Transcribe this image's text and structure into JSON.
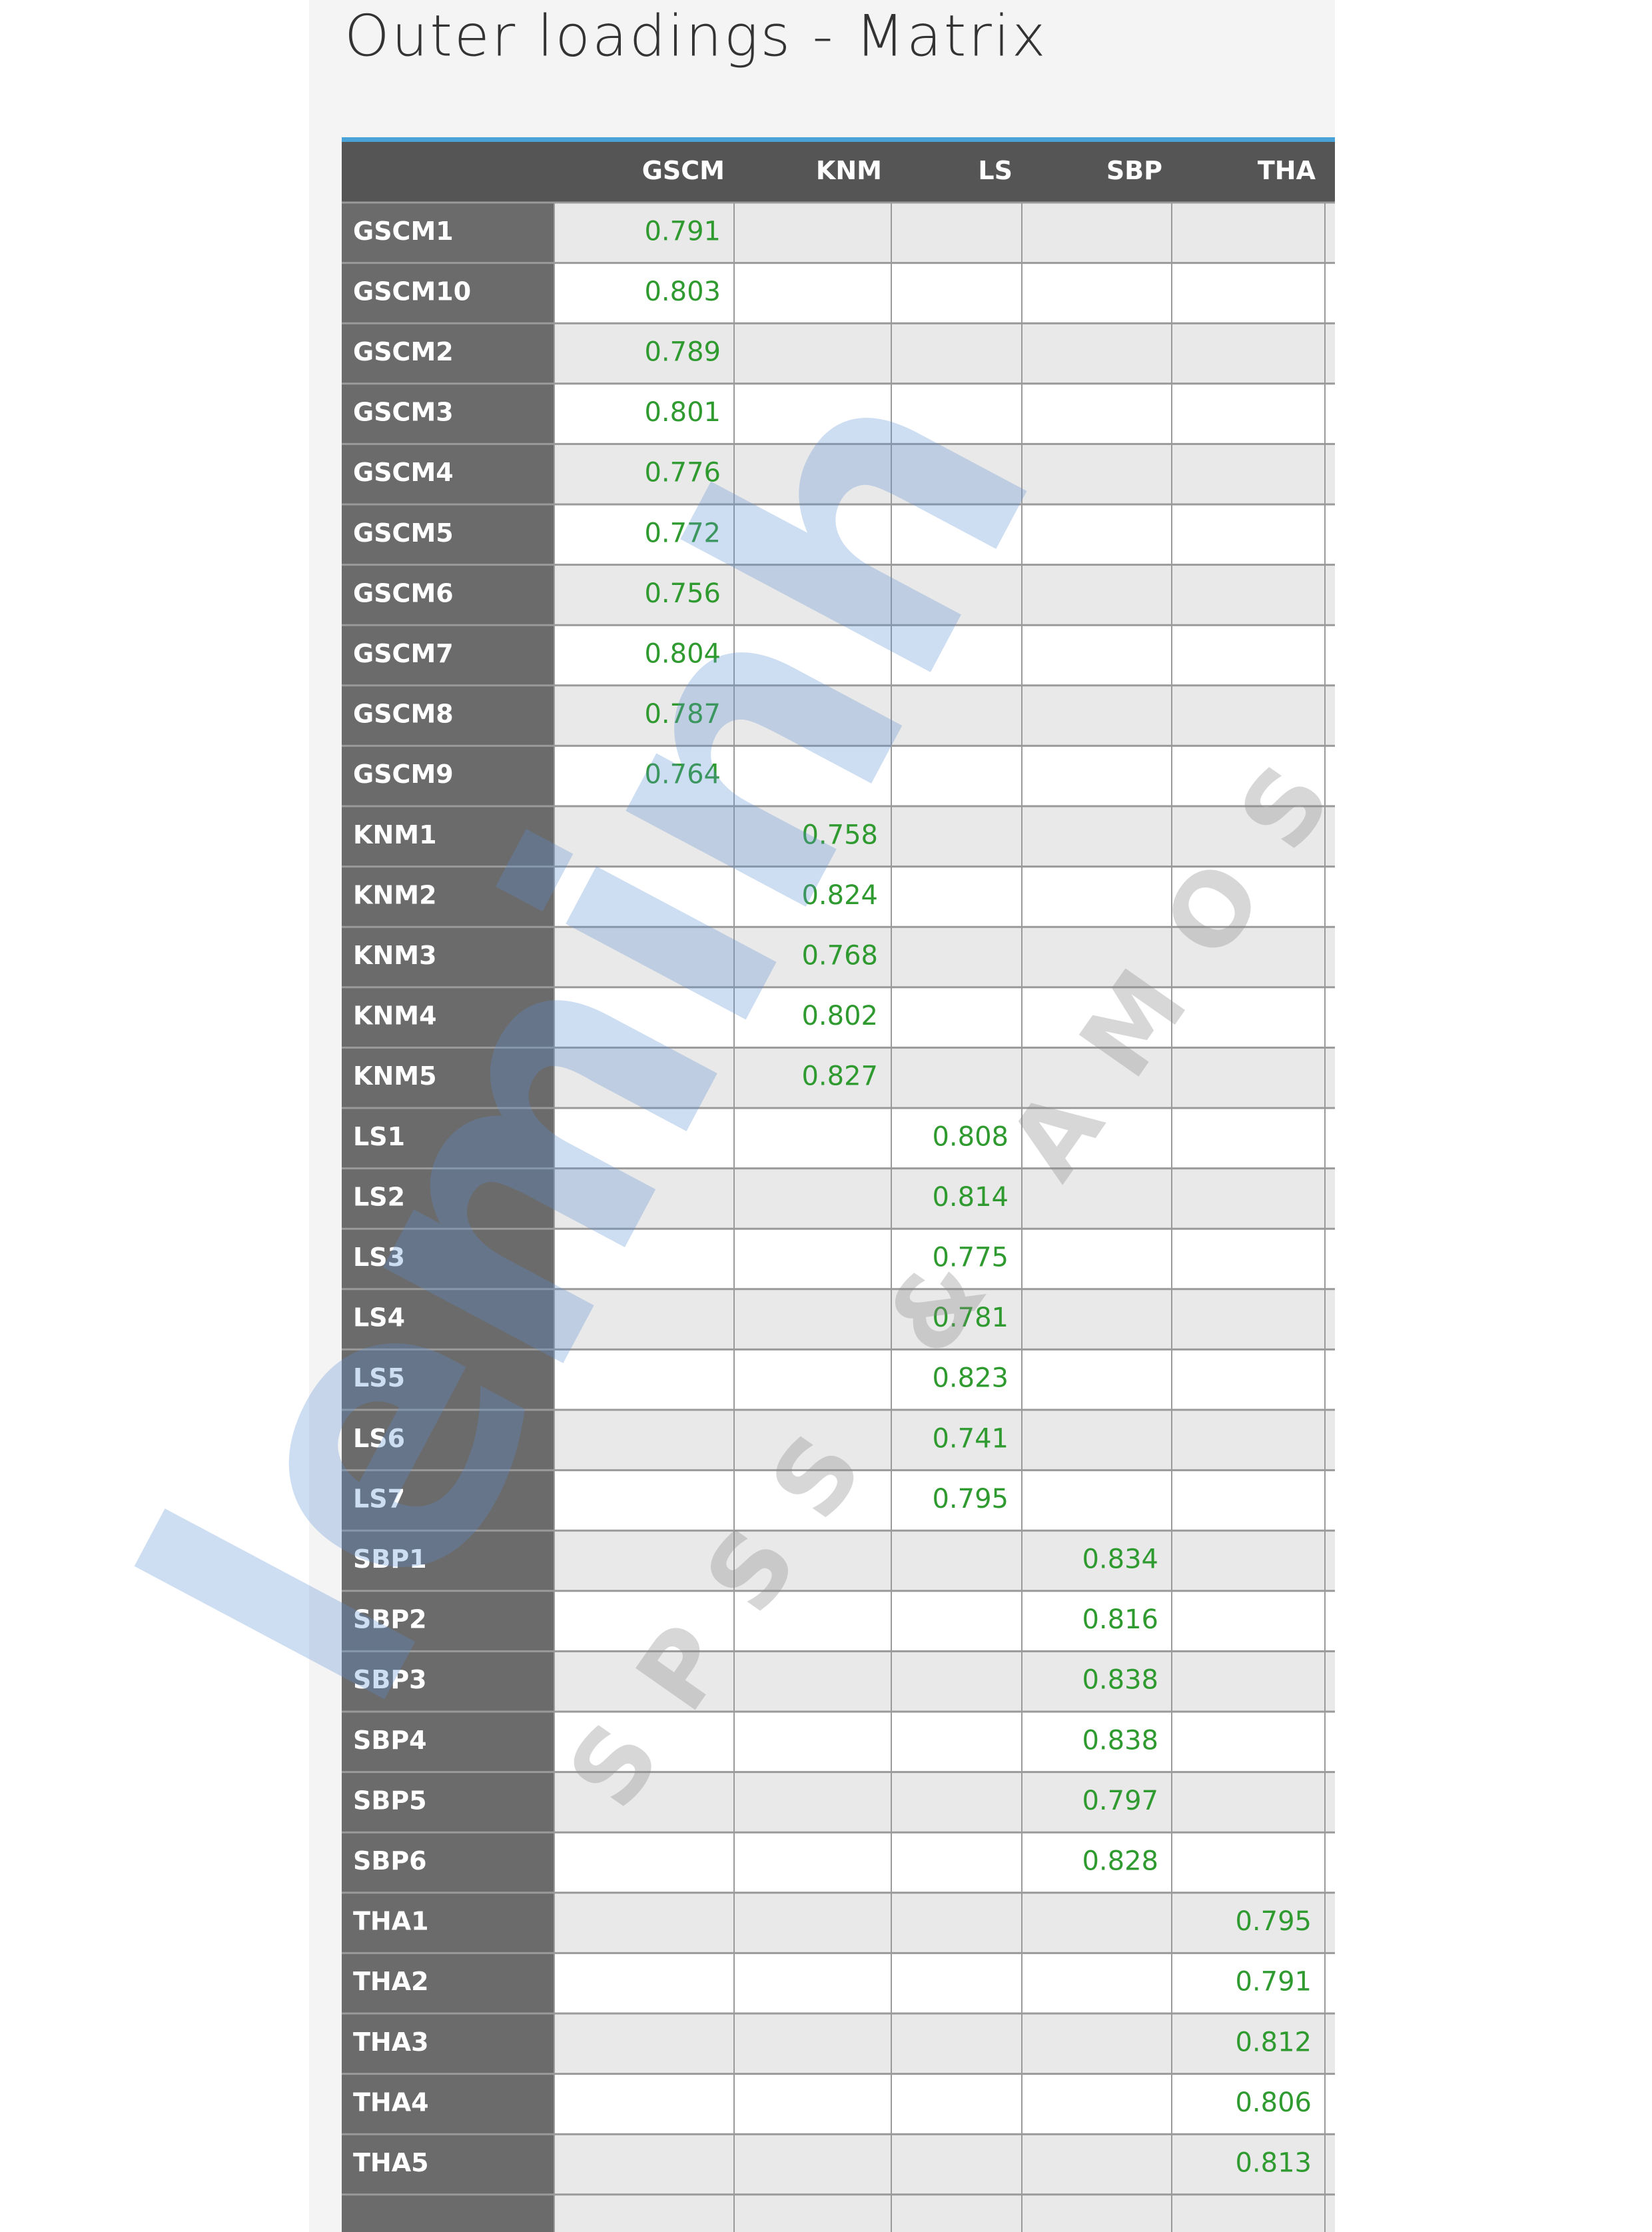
{
  "title": "Outer loadings - Matrix",
  "watermark": {
    "brand": "leminh",
    "tagline": "SPSS & AMOS"
  },
  "table": {
    "columns": [
      "GSCM",
      "KNM",
      "LS",
      "SBP",
      "THA"
    ],
    "rows": [
      {
        "label": "GSCM1",
        "cells": [
          0.791,
          null,
          null,
          null,
          null
        ]
      },
      {
        "label": "GSCM10",
        "cells": [
          0.803,
          null,
          null,
          null,
          null
        ]
      },
      {
        "label": "GSCM2",
        "cells": [
          0.789,
          null,
          null,
          null,
          null
        ]
      },
      {
        "label": "GSCM3",
        "cells": [
          0.801,
          null,
          null,
          null,
          null
        ]
      },
      {
        "label": "GSCM4",
        "cells": [
          0.776,
          null,
          null,
          null,
          null
        ]
      },
      {
        "label": "GSCM5",
        "cells": [
          0.772,
          null,
          null,
          null,
          null
        ]
      },
      {
        "label": "GSCM6",
        "cells": [
          0.756,
          null,
          null,
          null,
          null
        ]
      },
      {
        "label": "GSCM7",
        "cells": [
          0.804,
          null,
          null,
          null,
          null
        ]
      },
      {
        "label": "GSCM8",
        "cells": [
          0.787,
          null,
          null,
          null,
          null
        ]
      },
      {
        "label": "GSCM9",
        "cells": [
          0.764,
          null,
          null,
          null,
          null
        ]
      },
      {
        "label": "KNM1",
        "cells": [
          null,
          0.758,
          null,
          null,
          null
        ]
      },
      {
        "label": "KNM2",
        "cells": [
          null,
          0.824,
          null,
          null,
          null
        ]
      },
      {
        "label": "KNM3",
        "cells": [
          null,
          0.768,
          null,
          null,
          null
        ]
      },
      {
        "label": "KNM4",
        "cells": [
          null,
          0.802,
          null,
          null,
          null
        ]
      },
      {
        "label": "KNM5",
        "cells": [
          null,
          0.827,
          null,
          null,
          null
        ]
      },
      {
        "label": "LS1",
        "cells": [
          null,
          null,
          0.808,
          null,
          null
        ]
      },
      {
        "label": "LS2",
        "cells": [
          null,
          null,
          0.814,
          null,
          null
        ]
      },
      {
        "label": "LS3",
        "cells": [
          null,
          null,
          0.775,
          null,
          null
        ]
      },
      {
        "label": "LS4",
        "cells": [
          null,
          null,
          0.781,
          null,
          null
        ]
      },
      {
        "label": "LS5",
        "cells": [
          null,
          null,
          0.823,
          null,
          null
        ]
      },
      {
        "label": "LS6",
        "cells": [
          null,
          null,
          0.741,
          null,
          null
        ]
      },
      {
        "label": "LS7",
        "cells": [
          null,
          null,
          0.795,
          null,
          null
        ]
      },
      {
        "label": "SBP1",
        "cells": [
          null,
          null,
          null,
          0.834,
          null
        ]
      },
      {
        "label": "SBP2",
        "cells": [
          null,
          null,
          null,
          0.816,
          null
        ]
      },
      {
        "label": "SBP3",
        "cells": [
          null,
          null,
          null,
          0.838,
          null
        ]
      },
      {
        "label": "SBP4",
        "cells": [
          null,
          null,
          null,
          0.838,
          null
        ]
      },
      {
        "label": "SBP5",
        "cells": [
          null,
          null,
          null,
          0.797,
          null
        ]
      },
      {
        "label": "SBP6",
        "cells": [
          null,
          null,
          null,
          0.828,
          null
        ]
      },
      {
        "label": "THA1",
        "cells": [
          null,
          null,
          null,
          null,
          0.795
        ]
      },
      {
        "label": "THA2",
        "cells": [
          null,
          null,
          null,
          null,
          0.791
        ]
      },
      {
        "label": "THA3",
        "cells": [
          null,
          null,
          null,
          null,
          0.812
        ]
      },
      {
        "label": "THA4",
        "cells": [
          null,
          null,
          null,
          null,
          0.806
        ]
      },
      {
        "label": "THA5",
        "cells": [
          null,
          null,
          null,
          null,
          0.813
        ]
      }
    ]
  }
}
